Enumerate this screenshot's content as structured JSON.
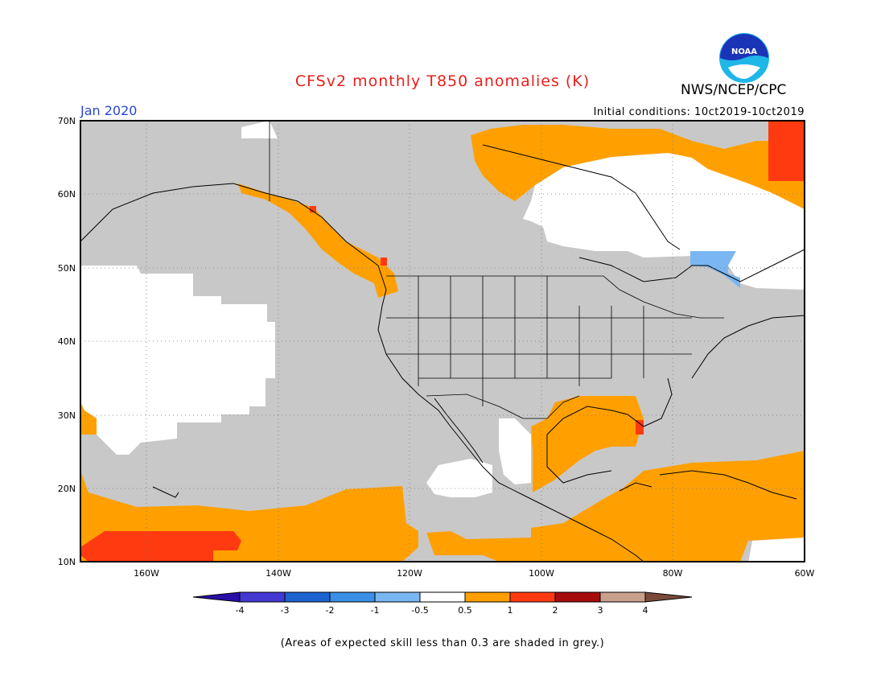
{
  "title": "CFSv2 monthly T850 anomalies (K)",
  "organization": "NWS/NCEP/CPC",
  "logo_text": "NOAA",
  "period": "Jan 2020",
  "initial_conditions": "Initial conditions: 10ct2019-10ct2019",
  "footnote": "(Areas of expected skill less than 0.3 are shaded in grey.)",
  "lat_labels": [
    "70N",
    "60N",
    "50N",
    "40N",
    "30N",
    "20N",
    "10N"
  ],
  "lon_labels": [
    "160W",
    "140W",
    "120W",
    "100W",
    "80W",
    "60W"
  ],
  "colorbar": {
    "labels": [
      "-4",
      "-3",
      "-2",
      "-1",
      "-0.5",
      "0.5",
      "1",
      "2",
      "3",
      "4"
    ],
    "colors": [
      "#2a0fa8",
      "#4338d2",
      "#1c64d0",
      "#3b8fe6",
      "#7ab6f2",
      "#ffffff",
      "#ffa000",
      "#ff3a10",
      "#a60c0c",
      "#c8a08c",
      "#7a4a3c"
    ]
  },
  "map_colors": {
    "grey": "#c8c8c8",
    "orange": "#ffa000",
    "red": "#ff3a10",
    "lightblue": "#7ab6f2",
    "white": "#ffffff"
  }
}
